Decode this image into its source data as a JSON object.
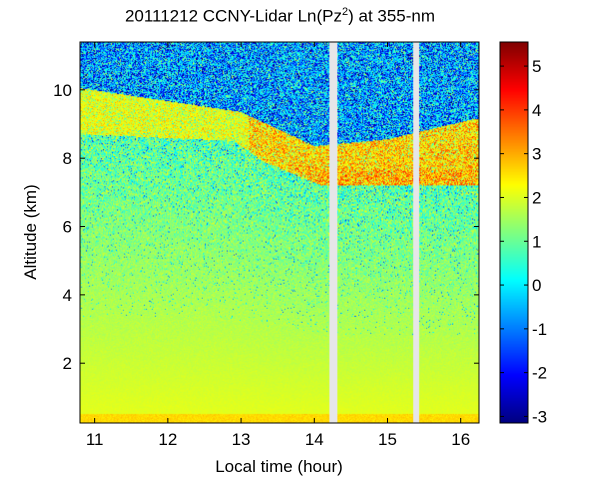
{
  "chart_data": {
    "type": "heatmap",
    "title_prefix": "20111212 CCNY-Lidar Ln(Pz",
    "title_sup": "2",
    "title_suffix": ") at 355-nm",
    "xlabel": "Local time (hour)",
    "ylabel": "Altitude (km)",
    "xlim": [
      10.8,
      16.25
    ],
    "ylim": [
      0.25,
      11.4
    ],
    "x_ticks": [
      11,
      12,
      13,
      14,
      15,
      16
    ],
    "y_ticks": [
      2,
      4,
      6,
      8,
      10
    ],
    "colorbar": {
      "colormap": "jet",
      "clim": [
        -3.15,
        5.55
      ],
      "ticks": [
        -3,
        -2,
        -1,
        0,
        1,
        2,
        3,
        4,
        5
      ],
      "ticks_labels": [
        "-3",
        "-2",
        "-1",
        "0",
        "1",
        "2",
        "3",
        "4",
        "5"
      ]
    },
    "data_gaps_hours": [
      [
        14.2,
        14.32
      ],
      [
        15.35,
        15.43
      ]
    ],
    "features": {
      "cloud_layer_top_km": [
        [
          10.8,
          9.7
        ],
        [
          13.0,
          9.0
        ],
        [
          14.0,
          8.0
        ],
        [
          15.0,
          8.2
        ],
        [
          16.2,
          8.8
        ]
      ],
      "cloud_layer_base_km": [
        [
          10.8,
          8.7
        ],
        [
          12.9,
          8.5
        ],
        [
          13.3,
          7.9
        ],
        [
          14.1,
          7.2
        ],
        [
          16.2,
          7.2
        ]
      ],
      "surface_layer_km": [
        0.25,
        0.5
      ]
    }
  }
}
